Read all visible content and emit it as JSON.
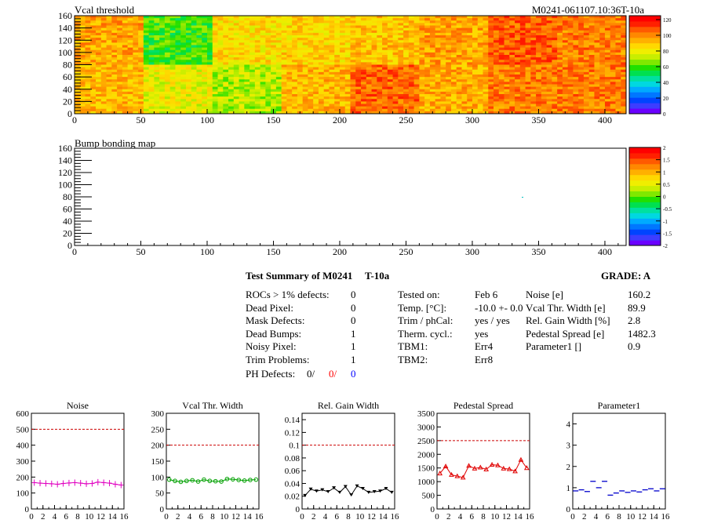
{
  "colors": {
    "red": "#ff0000",
    "blue": "#0000ff",
    "dashed": "#cc0000",
    "noise": "#e000c0",
    "vcal": "#00a000",
    "relgain": "#000000",
    "pedestal": "#e00000",
    "param1": "#0000cc"
  },
  "vcal_map": {
    "title": "Vcal threshold",
    "module_label": "M0241-061107.10:36T-10a",
    "x_ticks": [
      "0",
      "50",
      "100",
      "150",
      "200",
      "250",
      "300",
      "350",
      "400"
    ],
    "y_ticks": [
      "0",
      "20",
      "40",
      "60",
      "80",
      "100",
      "120",
      "140",
      "160"
    ],
    "palette_ticks": [
      "0",
      "20",
      "40",
      "60",
      "80",
      "100",
      "120"
    ]
  },
  "bump_map": {
    "title": "Bump bonding map",
    "x_ticks": [
      "0",
      "50",
      "100",
      "150",
      "200",
      "250",
      "300",
      "350",
      "400"
    ],
    "y_ticks": [
      "0",
      "20",
      "40",
      "60",
      "80",
      "100",
      "120",
      "140",
      "160"
    ],
    "palette_ticks": [
      "-2",
      "-1.5",
      "-1",
      "-0.5",
      "0",
      "0.5",
      "1",
      "1.5",
      "2"
    ]
  },
  "summary": {
    "title": "Test Summary of M0241",
    "test": "T-10a",
    "grade": "GRADE:  A",
    "defects": [
      {
        "label": "ROCs > 1% defects:",
        "value": "0"
      },
      {
        "label": "Dead Pixel:",
        "value": "0"
      },
      {
        "label": "Mask Defects:",
        "value": "0"
      },
      {
        "label": "Dead Bumps:",
        "value": "1"
      },
      {
        "label": "Noisy Pixel:",
        "value": "1"
      },
      {
        "label": "Trim Problems:",
        "value": "1"
      }
    ],
    "ph_defects": {
      "label": "PH Defects:",
      "v1": "0/",
      "v2": "0/",
      "v3": "0"
    },
    "conditions": [
      {
        "label": "Tested on:",
        "value": "Feb 6"
      },
      {
        "label": "Temp. [°C]:",
        "value": "-10.0 +- 0.0"
      },
      {
        "label": "Trim / phCal:",
        "value": "yes / yes"
      },
      {
        "label": "Therm. cycl.:",
        "value": "yes"
      },
      {
        "label": "TBM1:",
        "value": "Err4"
      },
      {
        "label": "TBM2:",
        "value": "Err8"
      }
    ],
    "results": [
      {
        "label": "Noise [e]",
        "value": "160.2"
      },
      {
        "label": "Vcal Thr. Width [e]",
        "value": "89.9"
      },
      {
        "label": "Rel. Gain Width [%]",
        "value": "2.8"
      },
      {
        "label": "Pedestal Spread [e]",
        "value": "1482.3"
      },
      {
        "label": "Parameter1 []",
        "value": "0.9"
      }
    ]
  },
  "chart_data": [
    {
      "type": "heatmap",
      "title": "Vcal threshold",
      "xlim": [
        0,
        416
      ],
      "ylim": [
        0,
        160
      ],
      "z_range": [
        0,
        125
      ],
      "roc_means": [
        [
          98,
          60,
          86,
          88,
          92,
          98,
          110,
          104
        ],
        [
          94,
          80,
          72,
          94,
          108,
          96,
          104,
          104
        ]
      ]
    },
    {
      "type": "heatmap",
      "title": "Bump bonding map",
      "xlim": [
        0,
        416
      ],
      "ylim": [
        0,
        160
      ],
      "z_range": [
        -2,
        2
      ]
    },
    {
      "type": "scatter",
      "title": "Noise",
      "x_ticks": [
        "0",
        "2",
        "4",
        "6",
        "8",
        "10",
        "12",
        "14",
        "16"
      ],
      "y_ticks": [
        "0",
        "100",
        "200",
        "300",
        "400",
        "500",
        "600"
      ],
      "xlim": [
        0,
        16
      ],
      "ylim": [
        0,
        600
      ],
      "limit": 500,
      "x": [
        0,
        1,
        2,
        3,
        4,
        5,
        6,
        7,
        8,
        9,
        10,
        11,
        12,
        13,
        14,
        15
      ],
      "values": [
        165,
        162,
        160,
        158,
        155,
        160,
        163,
        165,
        162,
        158,
        160,
        168,
        165,
        162,
        155,
        150
      ]
    },
    {
      "type": "scatter",
      "title": "Vcal Thr. Width",
      "x_ticks": [
        "0",
        "2",
        "4",
        "6",
        "8",
        "10",
        "12",
        "14",
        "16"
      ],
      "y_ticks": [
        "0",
        "50",
        "100",
        "150",
        "200",
        "250",
        "300"
      ],
      "xlim": [
        0,
        16
      ],
      "ylim": [
        0,
        300
      ],
      "limit": 200,
      "x": [
        0,
        1,
        2,
        3,
        4,
        5,
        6,
        7,
        8,
        9,
        10,
        11,
        12,
        13,
        14,
        15
      ],
      "values": [
        92,
        88,
        85,
        88,
        90,
        86,
        92,
        88,
        87,
        86,
        94,
        93,
        91,
        89,
        91,
        92
      ]
    },
    {
      "type": "scatter",
      "title": "Rel. Gain Width",
      "x_ticks": [
        "0",
        "2",
        "4",
        "6",
        "8",
        "10",
        "12",
        "14",
        "16"
      ],
      "y_ticks": [
        "0",
        "0.02",
        "0.04",
        "0.06",
        "0.08",
        "0.1",
        "0.12",
        "0.14"
      ],
      "xlim": [
        0,
        16
      ],
      "ylim": [
        0,
        0.15
      ],
      "limit": 0.1,
      "x": [
        0,
        1,
        2,
        3,
        4,
        5,
        6,
        7,
        8,
        9,
        10,
        11,
        12,
        13,
        14,
        15
      ],
      "values": [
        0.021,
        0.031,
        0.028,
        0.03,
        0.027,
        0.033,
        0.026,
        0.035,
        0.022,
        0.036,
        0.032,
        0.026,
        0.027,
        0.028,
        0.032,
        0.026
      ]
    },
    {
      "type": "scatter",
      "title": "Pedestal Spread",
      "x_ticks": [
        "0",
        "2",
        "4",
        "6",
        "8",
        "10",
        "12",
        "14",
        "16"
      ],
      "y_ticks": [
        "0",
        "500",
        "1000",
        "1500",
        "2000",
        "2500",
        "3000",
        "3500"
      ],
      "xlim": [
        0,
        16
      ],
      "ylim": [
        0,
        3500
      ],
      "limit": 2500,
      "x": [
        0,
        1,
        2,
        3,
        4,
        5,
        6,
        7,
        8,
        9,
        10,
        11,
        12,
        13,
        14,
        15
      ],
      "values": [
        1300,
        1560,
        1250,
        1200,
        1150,
        1580,
        1480,
        1520,
        1450,
        1620,
        1600,
        1480,
        1460,
        1380,
        1800,
        1500
      ]
    },
    {
      "type": "scatter",
      "title": "Parameter1",
      "x_ticks": [
        "0",
        "2",
        "4",
        "6",
        "8",
        "10",
        "12",
        "14",
        "16"
      ],
      "y_ticks": [
        "0",
        "1",
        "2",
        "3",
        "4"
      ],
      "xlim": [
        0,
        16
      ],
      "ylim": [
        0,
        4.5
      ],
      "x": [
        0,
        1,
        2,
        3,
        4,
        5,
        6,
        7,
        8,
        9,
        10,
        11,
        12,
        13,
        14,
        15
      ],
      "values": [
        0.85,
        0.9,
        0.82,
        1.3,
        1.0,
        1.3,
        0.65,
        0.75,
        0.85,
        0.78,
        0.85,
        0.8,
        0.9,
        0.95,
        0.85,
        0.95
      ]
    }
  ]
}
